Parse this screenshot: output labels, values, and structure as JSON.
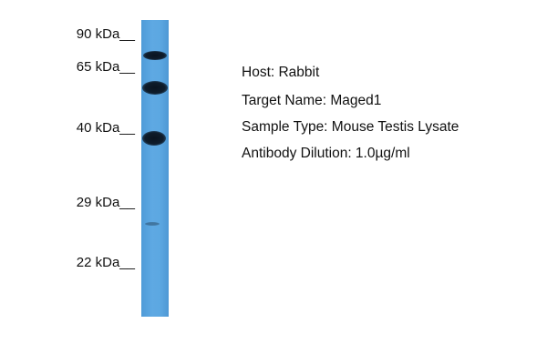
{
  "markers": [
    "90 kDa__",
    "65 kDa__",
    "40 kDa__",
    "29 kDa__",
    "22 kDa__"
  ],
  "info": {
    "host": "Host: Rabbit",
    "target": "Target Name: Maged1",
    "sample": "Sample Type: Mouse Testis Lysate",
    "dilution": "Antibody Dilution: 1.0µg/ml"
  },
  "colors": {
    "lane": "#5aa6e0",
    "band": "#0d1a28"
  }
}
